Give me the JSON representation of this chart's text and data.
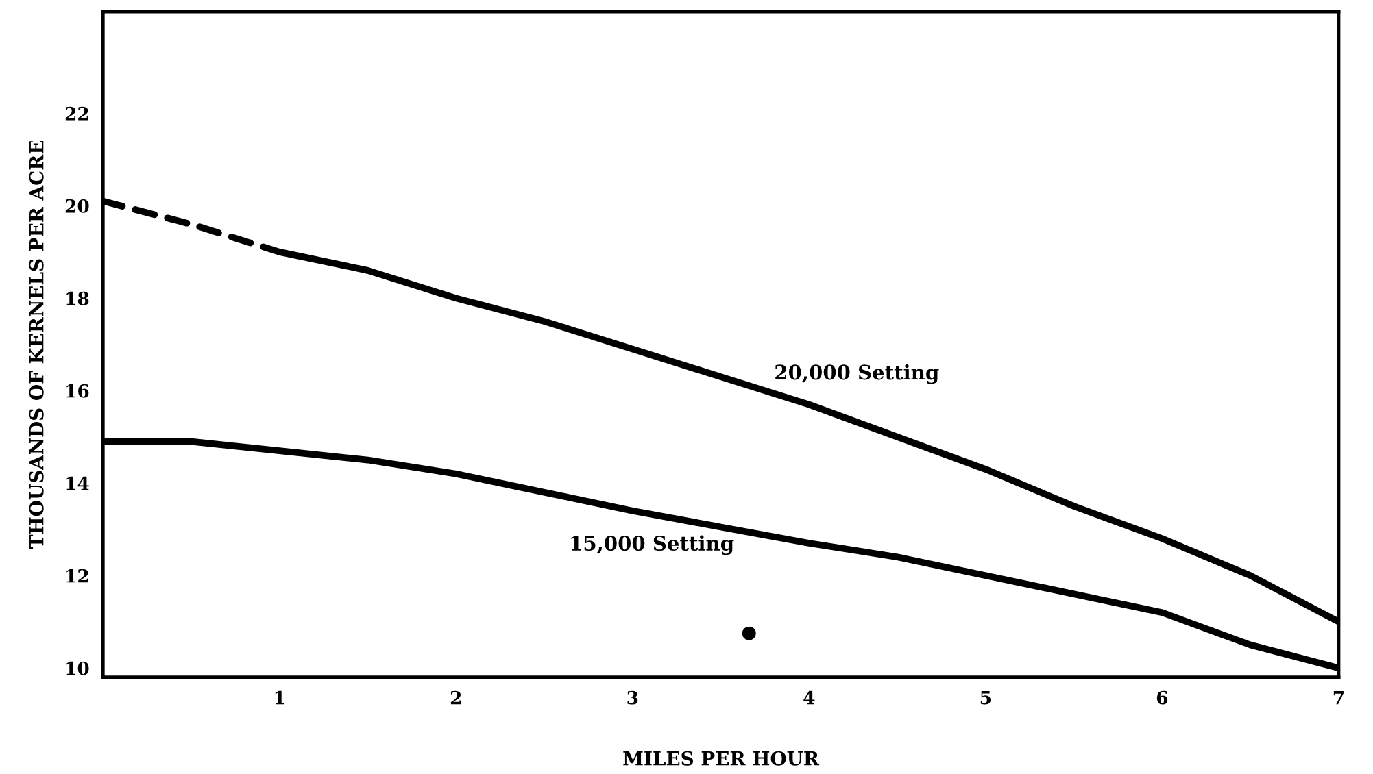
{
  "chart_data": {
    "type": "line",
    "xlabel": "MILES PER HOUR",
    "ylabel": "THOUSANDS OF KERNELS PER ACRE",
    "xlim": [
      0,
      7
    ],
    "xticks": [
      1,
      2,
      3,
      4,
      5,
      6,
      7
    ],
    "ylim": [
      9.8,
      24.2
    ],
    "yticks": [
      10,
      12,
      14,
      16,
      18,
      20,
      22
    ],
    "grid": false,
    "legend": false,
    "series": [
      {
        "color": "#000000",
        "line_style": "dashed",
        "x": [
          0,
          0.5,
          1
        ],
        "values": [
          20.1,
          19.6,
          19.0
        ]
      },
      {
        "name": "20,000 Setting",
        "color": "#000000",
        "line_style": "solid",
        "x": [
          1,
          1.5,
          2,
          2.5,
          3,
          3.5,
          4,
          4.5,
          5,
          5.5,
          6,
          6.5,
          7
        ],
        "values": [
          19.0,
          18.6,
          18.0,
          17.5,
          16.9,
          16.3,
          15.7,
          15.0,
          14.3,
          13.5,
          12.8,
          12.0,
          11.0
        ]
      },
      {
        "name": "15,000 Setting",
        "color": "#000000",
        "line_style": "solid",
        "x": [
          0,
          0.5,
          1,
          1.5,
          2,
          2.5,
          3,
          3.5,
          4,
          4.5,
          5,
          5.5,
          6,
          6.5,
          7
        ],
        "values": [
          14.9,
          14.9,
          14.7,
          14.5,
          14.2,
          13.8,
          13.4,
          13.05,
          12.7,
          12.4,
          12.0,
          11.6,
          11.2,
          10.5,
          10.0
        ]
      },
      {
        "type": "scatter",
        "color": "#000000",
        "marker": "circle",
        "x": [
          3.66
        ],
        "values": [
          10.75
        ]
      }
    ]
  }
}
